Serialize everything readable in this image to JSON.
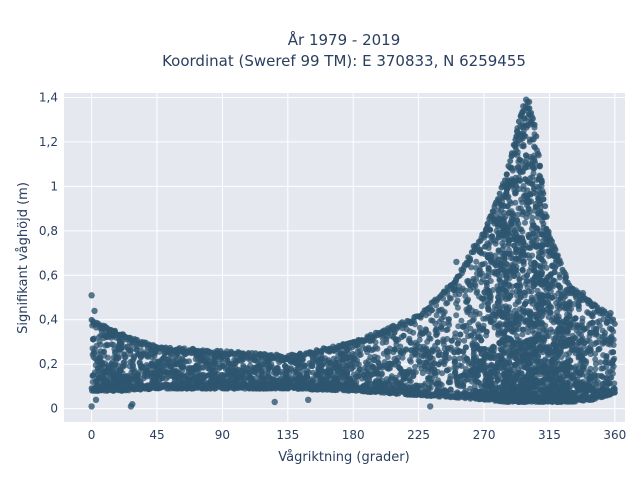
{
  "chart_data": {
    "type": "scatter",
    "title_line1": "År 1979 - 2019",
    "title_line2": "Koordinat (Sweref 99 TM): E 370833, N 6259455",
    "xlabel": "Vågriktning (grader)",
    "ylabel": "Signifikant våghöjd (m)",
    "xlim": [
      -19,
      367
    ],
    "ylim": [
      -0.06,
      1.42
    ],
    "x_ticks": [
      0,
      45,
      90,
      135,
      180,
      225,
      270,
      315,
      360
    ],
    "y_ticks": [
      0,
      0.2,
      0.4,
      0.6,
      0.8,
      1.0,
      1.2,
      1.4
    ],
    "y_tick_labels": [
      "0",
      "0,2",
      "0,4",
      "0,6",
      "0,8",
      "1",
      "1,2",
      "1,4"
    ],
    "grid": true,
    "marker_color": "#2e5670",
    "plot_bg": "#e5e8ef",
    "envelope": {
      "x": [
        0,
        20,
        45,
        90,
        135,
        180,
        225,
        250,
        270,
        285,
        295,
        300,
        305,
        310,
        315,
        330,
        345,
        360
      ],
      "lower": [
        0.08,
        0.08,
        0.09,
        0.09,
        0.09,
        0.08,
        0.06,
        0.05,
        0.04,
        0.03,
        0.03,
        0.03,
        0.03,
        0.03,
        0.03,
        0.03,
        0.04,
        0.07
      ],
      "upper": [
        0.4,
        0.34,
        0.28,
        0.26,
        0.24,
        0.3,
        0.42,
        0.58,
        0.8,
        1.05,
        1.32,
        1.39,
        1.28,
        1.02,
        0.78,
        0.55,
        0.48,
        0.4
      ]
    },
    "outliers": [
      {
        "x": 0,
        "y": 0.51
      },
      {
        "x": 2,
        "y": 0.44
      },
      {
        "x": 0,
        "y": 0.01
      },
      {
        "x": 3,
        "y": 0.04
      },
      {
        "x": 27,
        "y": 0.01
      },
      {
        "x": 28,
        "y": 0.02
      },
      {
        "x": 126,
        "y": 0.03
      },
      {
        "x": 149,
        "y": 0.04
      },
      {
        "x": 233,
        "y": 0.01
      },
      {
        "x": 251,
        "y": 0.66
      },
      {
        "x": 263,
        "y": 0.73
      },
      {
        "x": 272,
        "y": 0.81
      },
      {
        "x": 286,
        "y": 0.95
      },
      {
        "x": 295,
        "y": 1.27
      },
      {
        "x": 297,
        "y": 1.36
      },
      {
        "x": 299,
        "y": 1.39
      },
      {
        "x": 301,
        "y": 1.38
      },
      {
        "x": 319,
        "y": 0.12
      },
      {
        "x": 338,
        "y": 0.52
      },
      {
        "x": 357,
        "y": 0.43
      }
    ]
  }
}
